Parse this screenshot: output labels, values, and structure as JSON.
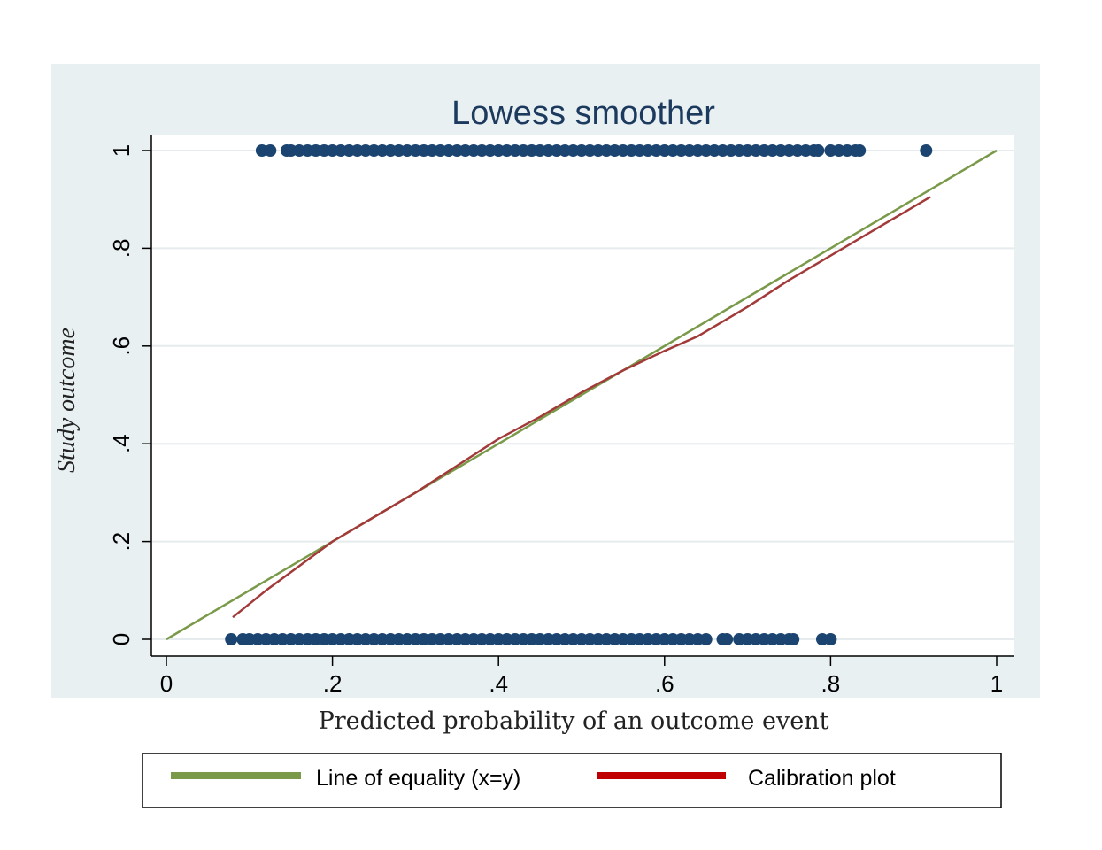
{
  "chart_data": {
    "type": "scatter",
    "title": "Lowess smoother",
    "xlabel": "Predicted probability of an outcome event",
    "ylabel": "Study outcome",
    "xlim": [
      0,
      1
    ],
    "ylim": [
      0,
      1
    ],
    "x_ticks": [
      {
        "value": 0,
        "label": "0"
      },
      {
        "value": 0.2,
        "label": ".2"
      },
      {
        "value": 0.4,
        "label": ".4"
      },
      {
        "value": 0.6,
        "label": ".6"
      },
      {
        "value": 0.8,
        "label": ".8"
      },
      {
        "value": 1,
        "label": "1"
      }
    ],
    "y_ticks": [
      {
        "value": 0,
        "label": "0"
      },
      {
        "value": 0.2,
        "label": ".2"
      },
      {
        "value": 0.4,
        "label": ".4"
      },
      {
        "value": 0.6,
        "label": ".6"
      },
      {
        "value": 0.8,
        "label": ".8"
      },
      {
        "value": 1,
        "label": "1"
      }
    ],
    "grid": true,
    "legend_position": "bottom",
    "series": [
      {
        "name": "Line of equality (x=y)",
        "kind": "line",
        "color": "#7a9a4a",
        "points": [
          [
            0,
            0
          ],
          [
            1,
            1
          ]
        ]
      },
      {
        "name": "Calibration plot",
        "kind": "line",
        "color": "#a33a3a",
        "legend_color": "#c00000",
        "points": [
          [
            0.08,
            0.045
          ],
          [
            0.12,
            0.1
          ],
          [
            0.16,
            0.15
          ],
          [
            0.2,
            0.2
          ],
          [
            0.25,
            0.25
          ],
          [
            0.3,
            0.3
          ],
          [
            0.35,
            0.355
          ],
          [
            0.4,
            0.41
          ],
          [
            0.45,
            0.455
          ],
          [
            0.5,
            0.505
          ],
          [
            0.55,
            0.55
          ],
          [
            0.6,
            0.59
          ],
          [
            0.64,
            0.62
          ],
          [
            0.7,
            0.68
          ],
          [
            0.75,
            0.735
          ],
          [
            0.8,
            0.785
          ],
          [
            0.85,
            0.835
          ],
          [
            0.92,
            0.905
          ]
        ]
      },
      {
        "kind": "points",
        "color": "#1b4470",
        "y": 1,
        "x": [
          0.115,
          0.125,
          0.145,
          0.15,
          0.16,
          0.17,
          0.18,
          0.19,
          0.2,
          0.21,
          0.22,
          0.23,
          0.24,
          0.25,
          0.26,
          0.27,
          0.28,
          0.29,
          0.3,
          0.31,
          0.32,
          0.33,
          0.34,
          0.35,
          0.36,
          0.37,
          0.38,
          0.39,
          0.4,
          0.41,
          0.42,
          0.43,
          0.44,
          0.45,
          0.46,
          0.47,
          0.48,
          0.49,
          0.5,
          0.51,
          0.52,
          0.53,
          0.54,
          0.55,
          0.56,
          0.57,
          0.58,
          0.59,
          0.6,
          0.61,
          0.62,
          0.63,
          0.64,
          0.65,
          0.66,
          0.67,
          0.68,
          0.69,
          0.7,
          0.71,
          0.72,
          0.73,
          0.74,
          0.75,
          0.76,
          0.77,
          0.78,
          0.785,
          0.8,
          0.81,
          0.82,
          0.83,
          0.835,
          0.915
        ]
      },
      {
        "kind": "points",
        "color": "#1b4470",
        "y": 0,
        "x": [
          0.078,
          0.092,
          0.1,
          0.11,
          0.12,
          0.13,
          0.14,
          0.15,
          0.16,
          0.17,
          0.18,
          0.19,
          0.2,
          0.21,
          0.22,
          0.23,
          0.24,
          0.25,
          0.26,
          0.27,
          0.28,
          0.29,
          0.3,
          0.31,
          0.32,
          0.33,
          0.34,
          0.35,
          0.36,
          0.37,
          0.38,
          0.39,
          0.4,
          0.41,
          0.42,
          0.43,
          0.44,
          0.45,
          0.46,
          0.47,
          0.48,
          0.49,
          0.5,
          0.51,
          0.52,
          0.53,
          0.54,
          0.55,
          0.56,
          0.57,
          0.58,
          0.59,
          0.6,
          0.61,
          0.62,
          0.63,
          0.64,
          0.65,
          0.67,
          0.675,
          0.69,
          0.7,
          0.71,
          0.72,
          0.73,
          0.74,
          0.75,
          0.755,
          0.79,
          0.8
        ]
      }
    ]
  }
}
